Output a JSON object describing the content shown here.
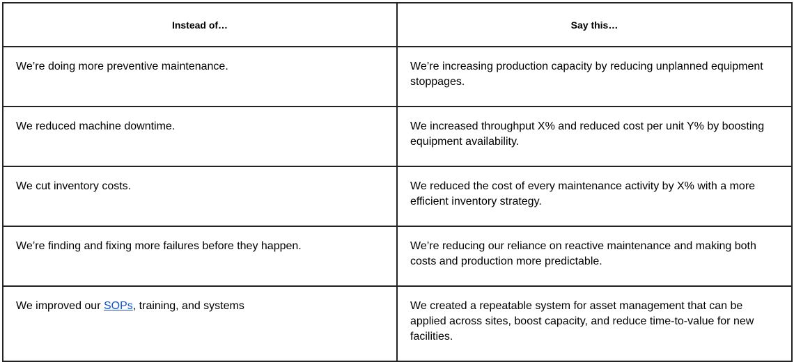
{
  "table": {
    "headers": [
      "Instead of…",
      "Say this…"
    ],
    "rows": [
      {
        "instead": "We’re doing more preventive maintenance.",
        "say": "We’re increasing production capacity by reducing unplanned equipment stoppages."
      },
      {
        "instead": "We reduced machine downtime.",
        "say": "We increased throughput X% and reduced cost per unit Y% by boosting equipment availability."
      },
      {
        "instead": "We cut inventory costs.",
        "say": "We reduced the cost of every maintenance activity by X% with a more efficient inventory strategy."
      },
      {
        "instead": "We’re finding and fixing more failures before they happen.",
        "say": "We’re reducing our reliance on reactive maintenance and making both costs and production more predictable."
      },
      {
        "instead_prefix": "We improved our ",
        "instead_link": "SOPs",
        "instead_suffix": ", training, and systems",
        "say": "We created a repeatable system for asset management that can be applied across sites, boost capacity, and reduce time-to-value for new facilities."
      }
    ]
  }
}
